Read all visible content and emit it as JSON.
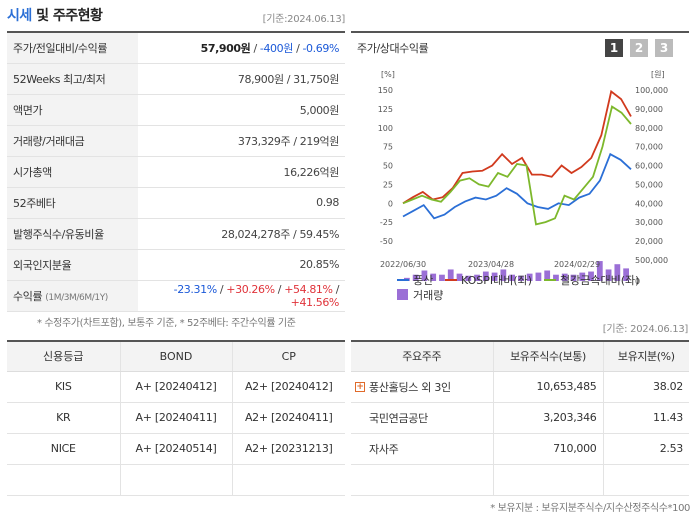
{
  "header": {
    "title_part1": "시세",
    "title_part2": "및 주주현황",
    "basis_date": "[기준:2024.06.13]"
  },
  "quote": {
    "rows": [
      {
        "label": "주가/전일대비/수익률",
        "price": "57,900원",
        "sep1": " / ",
        "change": "-400원",
        "sep2": " / ",
        "rate": "-0.69%"
      },
      {
        "label": "52Weeks 최고/최저",
        "value": "78,900원 / 31,750원"
      },
      {
        "label": "액면가",
        "value": "5,000원"
      },
      {
        "label": "거래량/거래대금",
        "value": "373,329주 / 219억원"
      },
      {
        "label": "시가총액",
        "value": "16,226억원"
      },
      {
        "label": "52주베타",
        "value": "0.98"
      },
      {
        "label": "발행주식수/유동비율",
        "value": "28,024,278주 / 59.45%"
      },
      {
        "label": "외국인지분율",
        "value": "20.85%"
      },
      {
        "label": "수익률",
        "label_small": "(1M/3M/6M/1Y)",
        "r1": "-23.31%",
        "r2": "+30.26%",
        "r3": "+54.81%",
        "r4": "+41.56%",
        "slash": "/"
      }
    ],
    "note": "* 수정주가(차트포함), 보통주 기준, * 52주베타: 주간수익률 기준"
  },
  "chart_panel": {
    "title": "주가/상대수익률",
    "pages": [
      "1",
      "2",
      "3"
    ],
    "colors": {
      "active": "#444444",
      "inactive": "#bbbbbb",
      "stock": "#2b6fd6",
      "kospi": "#d13a1e",
      "steel": "#7db82c",
      "volume": "#9b6fd6"
    }
  },
  "chart_data": {
    "type": "line",
    "left_axis_unit": "[%]",
    "right_axis_unit": "[원]",
    "left_ticks": [
      "150",
      "125",
      "100",
      "75",
      "50",
      "25",
      "0",
      "-25",
      "-50"
    ],
    "right_ticks": [
      "100,000",
      "90,000",
      "80,000",
      "70,000",
      "60,000",
      "50,000",
      "40,000",
      "30,000",
      "20,000"
    ],
    "volume_ticks": [
      "500,000",
      "0"
    ],
    "x_labels": [
      "2022/06/30",
      "2023/04/28",
      "2024/02/29"
    ],
    "ylim_left": [
      -50,
      150
    ],
    "ylim_right": [
      20000,
      100000
    ],
    "series": [
      {
        "name": "풍산",
        "axis": "right",
        "values": [
          33000,
          36000,
          39000,
          32000,
          34000,
          38000,
          41000,
          43000,
          42000,
          44000,
          48000,
          45000,
          40000,
          38000,
          37000,
          40000,
          39000,
          43000,
          45000,
          52000,
          66000,
          63000,
          58000
        ]
      },
      {
        "name": "KOSPI대비(좌)",
        "axis": "left",
        "values": [
          0,
          8,
          15,
          5,
          8,
          20,
          40,
          42,
          43,
          50,
          65,
          52,
          60,
          38,
          38,
          35,
          50,
          40,
          48,
          60,
          90,
          148,
          138,
          115
        ]
      },
      {
        "name": "철강금속대비(좌)",
        "axis": "left",
        "values": [
          0,
          5,
          10,
          5,
          2,
          15,
          30,
          33,
          25,
          22,
          40,
          35,
          52,
          50,
          -28,
          -25,
          -20,
          10,
          5,
          20,
          35,
          75,
          128,
          120,
          105
        ]
      }
    ],
    "volume": {
      "name": "거래량",
      "values": [
        0.15,
        0.3,
        0.5,
        0.35,
        0.3,
        0.55,
        0.35,
        0.25,
        0.3,
        0.45,
        0.4,
        0.55,
        0.3,
        0.25,
        0.35,
        0.4,
        0.5,
        0.3,
        0.35,
        0.3,
        0.4,
        0.45,
        0.95,
        0.55,
        0.8,
        0.6
      ]
    },
    "legend": {
      "stock": "풍산",
      "kospi": "KOSPI대비(좌)",
      "steel": "철강금속대비(좌)",
      "volume": "거래량"
    }
  },
  "basis_date_2": "[기준: 2024.06.13]",
  "credit": {
    "headers": [
      "신용등급",
      "BOND",
      "CP"
    ],
    "rows": [
      [
        "KIS",
        "A+ [20240412]",
        "A2+ [20240412]"
      ],
      [
        "KR",
        "A+ [20240411]",
        "A2+ [20240411]"
      ],
      [
        "NICE",
        "A+ [20240514]",
        "A2+ [20231213]"
      ],
      [
        "",
        "",
        ""
      ]
    ]
  },
  "holders": {
    "headers": [
      "주요주주",
      "보유주식수(보통)",
      "보유지분(%)"
    ],
    "rows": [
      {
        "name": "풍산홀딩스 외 3인",
        "shares": "10,653,485",
        "pct": "38.02",
        "expand": true
      },
      {
        "name": "국민연금공단",
        "shares": "3,203,346",
        "pct": "11.43",
        "expand": false
      },
      {
        "name": "자사주",
        "shares": "710,000",
        "pct": "2.53",
        "expand": false
      },
      {
        "name": "",
        "shares": "",
        "pct": "",
        "expand": false
      }
    ],
    "expand_icon": "+",
    "note": "* 보유지분 : 보유지분주식수/지수산정주식수*100"
  }
}
